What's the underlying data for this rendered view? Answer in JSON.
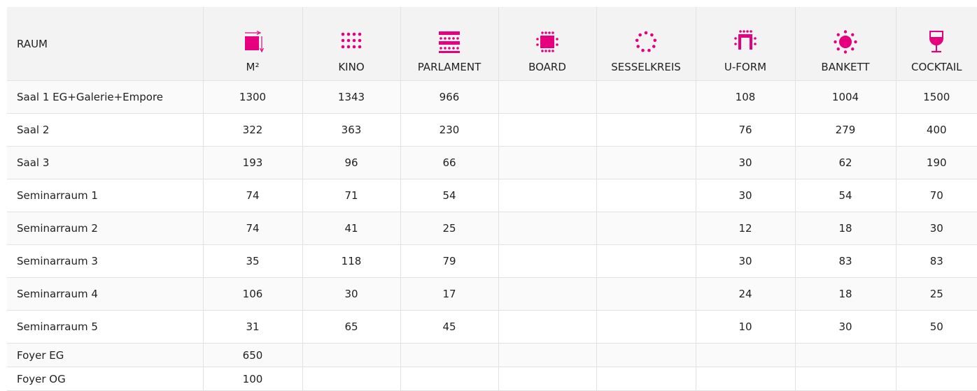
{
  "table": {
    "header": [
      "RAUM",
      "M²",
      "KINO",
      "PARLAMENT",
      "BOARD",
      "SESSELKREIS",
      "U-FORM",
      "BANKETT",
      "COCKTAIL"
    ],
    "rows": [
      [
        "Saal 1 EG+Galerie+Empore",
        "1300",
        "1343",
        "966",
        null,
        null,
        "108",
        "1004",
        "1500"
      ],
      [
        "Saal 2",
        "322",
        "363",
        "230",
        null,
        null,
        "76",
        "279",
        "400"
      ],
      [
        "Saal 3",
        "193",
        "96",
        "66",
        null,
        null,
        "30",
        "62",
        "190"
      ],
      [
        "Seminarraum 1",
        "74",
        "71",
        "54",
        null,
        null,
        "30",
        "54",
        "70"
      ],
      [
        "Seminarraum 2",
        "74",
        "41",
        "25",
        null,
        null,
        "12",
        "18",
        "30"
      ],
      [
        "Seminarraum 3",
        "35",
        "118",
        "79",
        null,
        null,
        "30",
        "83",
        "83"
      ],
      [
        "Seminarraum 4",
        "106",
        "30",
        "17",
        null,
        null,
        "24",
        "18",
        "25"
      ],
      [
        "Seminarraum 5",
        "31",
        "65",
        "45",
        null,
        null,
        "10",
        "30",
        "50"
      ],
      [
        "Foyer EG",
        "650",
        null,
        null,
        null,
        null,
        null,
        null,
        null
      ],
      [
        "Foyer OG",
        "100",
        null,
        null,
        null,
        null,
        null,
        null,
        null
      ]
    ]
  }
}
